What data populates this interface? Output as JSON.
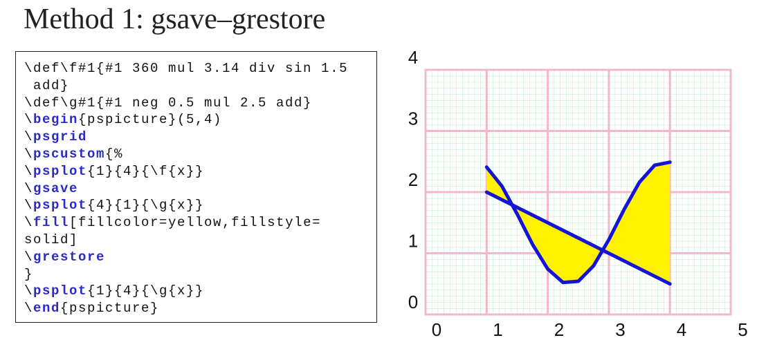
{
  "title": "Method 1: gsave–grestore",
  "code": [
    [
      "\\def\\f#1{#1 360 mul 3.14 div sin 1.5"
    ],
    [
      " add}"
    ],
    [
      "\\def\\g#1{#1 neg 0.5 mul 2.5 add}"
    ],
    [
      "\\",
      "begin",
      "{pspicture}(5,4)"
    ],
    [
      "\\",
      "psgrid"
    ],
    [
      "\\",
      "pscustom",
      "{%"
    ],
    [
      "\\",
      "psplot",
      "{1}{4}{\\f{x}}"
    ],
    [
      "\\",
      "gsave"
    ],
    [
      "\\",
      "psplot",
      "{4}{1}{\\g{x}}"
    ],
    [
      "\\",
      "fill",
      "[fillcolor=yellow,fillstyle="
    ],
    [
      "solid]"
    ],
    [
      "\\",
      "grestore"
    ],
    [
      "}"
    ],
    [
      "\\",
      "psplot",
      "{1}{4}{\\g{x}}"
    ],
    [
      "\\",
      "end",
      "{pspicture}"
    ]
  ],
  "plot": {
    "x_labels": [
      "0",
      "1",
      "2",
      "3",
      "4",
      "5"
    ],
    "y_labels": [
      "4",
      "3",
      "2",
      "1",
      "0"
    ]
  }
}
